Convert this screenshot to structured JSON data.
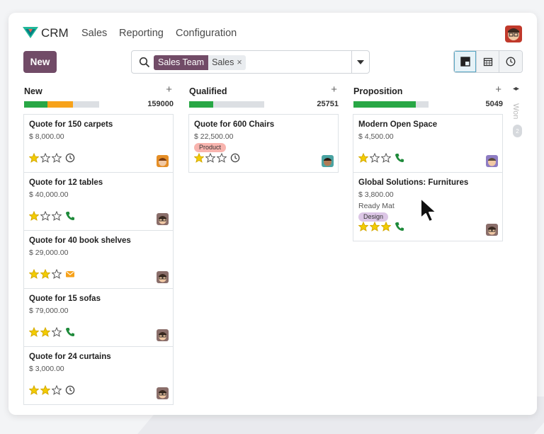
{
  "app": {
    "name": "CRM"
  },
  "menu": [
    {
      "label": "Sales"
    },
    {
      "label": "Reporting"
    },
    {
      "label": "Configuration"
    }
  ],
  "toolbar": {
    "new_label": "New"
  },
  "search": {
    "facet_label": "Sales Team",
    "facet_value": "Sales",
    "facet_close": "×"
  },
  "view_switch": [
    "kanban-icon",
    "calendar-icon",
    "activity-clock-icon"
  ],
  "colors": {
    "brand": "#714b67",
    "green": "#28a745",
    "orange": "#f7a21a",
    "grey": "#dcdfe3",
    "star": "#f3cc00"
  },
  "columns": [
    {
      "title": "New",
      "add": "+",
      "total": "159000",
      "progress": [
        {
          "color": "#28a745",
          "fraction": 0.31
        },
        {
          "color": "#f7a21a",
          "fraction": 0.34
        }
      ],
      "cards": [
        {
          "title": "Quote for 150 carpets",
          "amount": "$ 8,000.00",
          "stars": 1,
          "activity": "clock-icon",
          "avatar": "avatar-orange"
        },
        {
          "title": "Quote for 12 tables",
          "amount": "$ 40,000.00",
          "stars": 1,
          "activity": "phone-icon",
          "avatar": "avatar-glasses"
        },
        {
          "title": "Quote for 40 book shelves",
          "amount": "$ 29,000.00",
          "stars": 2,
          "activity": "envelope-icon",
          "avatar": "avatar-glasses"
        },
        {
          "title": "Quote for 15 sofas",
          "amount": "$ 79,000.00",
          "stars": 2,
          "activity": "phone-icon",
          "avatar": "avatar-glasses"
        },
        {
          "title": "Quote for 24 curtains",
          "amount": "$ 3,000.00",
          "stars": 2,
          "activity": "clock-icon",
          "avatar": "avatar-glasses"
        }
      ]
    },
    {
      "title": "Qualified",
      "add": "+",
      "total": "25751",
      "progress": [
        {
          "color": "#28a745",
          "fraction": 0.32
        }
      ],
      "cards": [
        {
          "title": "Quote for 600 Chairs",
          "amount": "$ 22,500.00",
          "tag": "Product",
          "tag_color": "#f8b4ae",
          "stars": 1,
          "activity": "clock-icon",
          "avatar": "avatar-teal"
        }
      ]
    },
    {
      "title": "Proposition",
      "add": "+",
      "total": "5049",
      "progress": [
        {
          "color": "#28a745",
          "fraction": 0.83
        }
      ],
      "cards": [
        {
          "title": "Modern Open Space",
          "amount": "$ 4,500.00",
          "stars": 1,
          "activity": "phone-icon",
          "avatar": "avatar-purple"
        },
        {
          "title": "Global Solutions: Furnitures",
          "amount": "$ 3,800.00",
          "extra": "Ready Mat",
          "tag": "Design",
          "tag_color": "#dcc6e6",
          "stars": 3,
          "activity": "phone-icon",
          "avatar": "avatar-glasses"
        }
      ]
    }
  ],
  "folded_column": {
    "label": "Won",
    "count": "2",
    "arrows": "◂▸"
  }
}
